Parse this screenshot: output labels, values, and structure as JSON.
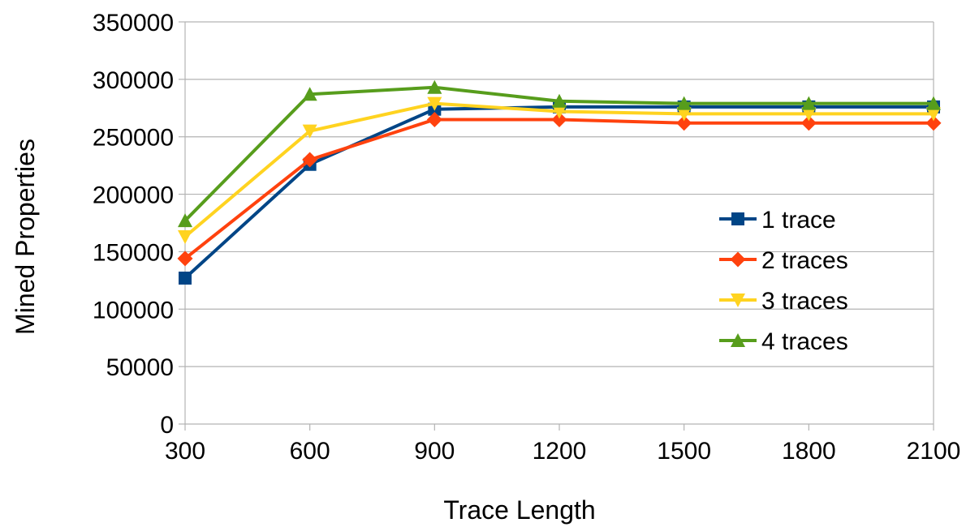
{
  "chart_data": {
    "type": "line",
    "title": "",
    "xlabel": "Trace Length",
    "ylabel": "Mined Properties",
    "x": [
      300,
      600,
      900,
      1200,
      1500,
      1800,
      2100
    ],
    "x_tick_labels": [
      "300",
      "600",
      "900",
      "1200",
      "1500",
      "1800",
      "2100"
    ],
    "ylim": [
      0,
      350000
    ],
    "y_ticks": [
      0,
      50000,
      100000,
      150000,
      200000,
      250000,
      300000,
      350000
    ],
    "y_tick_labels": [
      "0",
      "50000",
      "100000",
      "150000",
      "200000",
      "250000",
      "300000",
      "350000"
    ],
    "grid": "horizontal",
    "legend_position": "right",
    "series": [
      {
        "name": "1 trace",
        "color": "#004586",
        "marker": "square",
        "values": [
          127000,
          226000,
          274000,
          276000,
          276000,
          276000,
          276000
        ]
      },
      {
        "name": "2 traces",
        "color": "#ff420e",
        "marker": "diamond",
        "values": [
          144000,
          230000,
          265000,
          265000,
          262000,
          262000,
          262000
        ]
      },
      {
        "name": "3 traces",
        "color": "#ffd320",
        "marker": "triangle-down",
        "values": [
          163000,
          255000,
          279000,
          272000,
          270000,
          270000,
          270000
        ]
      },
      {
        "name": "4 traces",
        "color": "#579d1c",
        "marker": "triangle-up",
        "values": [
          177000,
          287000,
          293000,
          281000,
          279000,
          279000,
          279000
        ]
      }
    ]
  }
}
